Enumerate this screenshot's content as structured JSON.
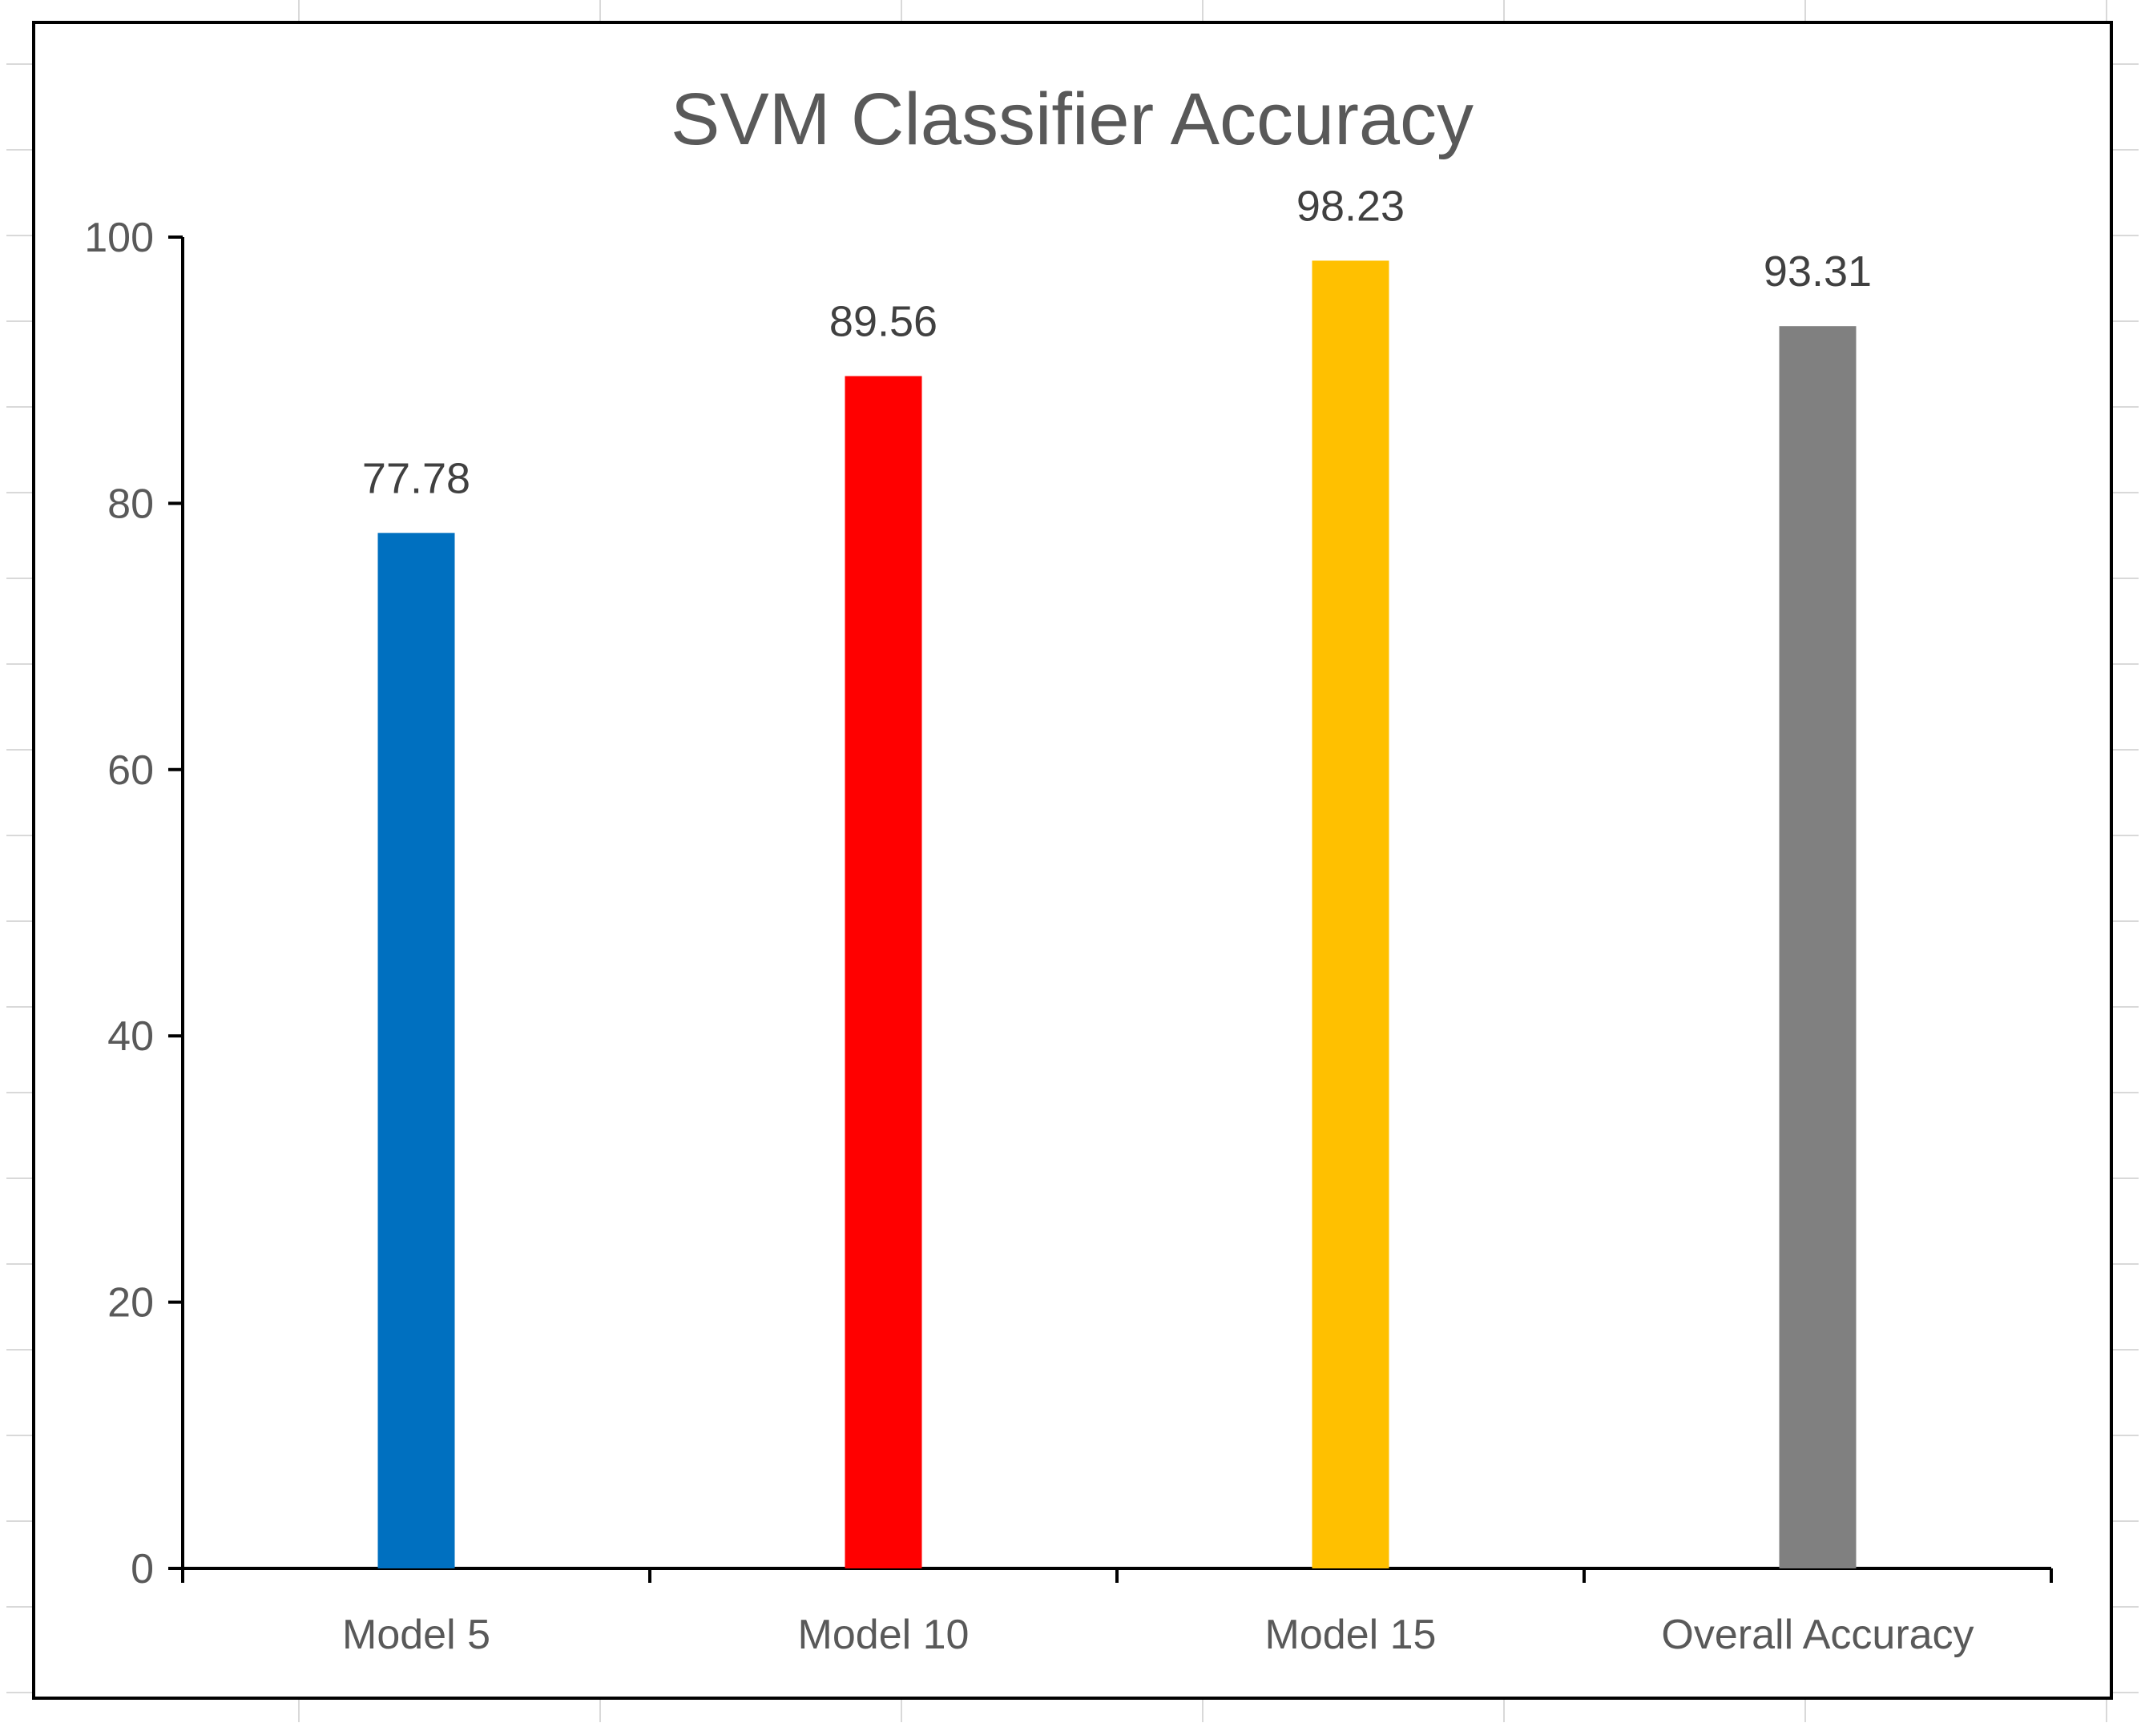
{
  "chart_data": {
    "type": "bar",
    "title": "SVM Classifier Accuracy",
    "xlabel": "",
    "ylabel": "",
    "categories": [
      "Model 5",
      "Model 10",
      "Model 15",
      "Overall Accuracy"
    ],
    "values": [
      77.78,
      89.56,
      98.23,
      93.31
    ],
    "data_labels": [
      "77.78",
      "89.56",
      "98.23",
      "93.31"
    ],
    "bar_colors": [
      "#0070c0",
      "#ff0000",
      "#ffc000",
      "#808080"
    ],
    "ylim": [
      0,
      100
    ],
    "yticks": [
      0,
      20,
      40,
      60,
      80,
      100
    ],
    "ytick_labels": [
      "0",
      "20",
      "40",
      "60",
      "80",
      "100"
    ],
    "grid": false,
    "legend": "none"
  }
}
